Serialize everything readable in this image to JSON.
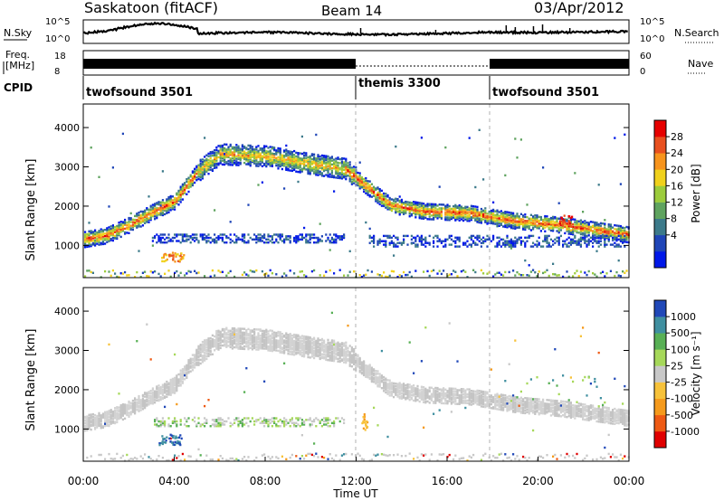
{
  "header": {
    "title": "Saskatoon (fitACF)",
    "beam": "Beam 14",
    "date": "03/Apr/2012"
  },
  "strips": {
    "sky_label": "N.Sky",
    "noise_left_ticks": [
      "10^5",
      "10^0"
    ],
    "noise_right_ticks": [
      "10^5",
      "10^0"
    ],
    "search_label": "N.Search",
    "freq_label_1": "Freq.",
    "freq_label_2": "[MHz]",
    "freq_ticks": [
      "18",
      "8"
    ],
    "nave_ticks": [
      "60",
      "0"
    ],
    "nave_label": "Nave",
    "cpid_label": "CPID",
    "cpid_segments": [
      {
        "name": "twofsound 3501",
        "start_h": 0,
        "end_h": 12
      },
      {
        "name": "themis 3300",
        "start_h": 12,
        "end_h": 18
      },
      {
        "name": "twofsound 3501",
        "start_h": 18,
        "end_h": 24
      }
    ]
  },
  "power_scale": {
    "label": "Power [dB]",
    "ticks": [
      "28",
      "24",
      "20",
      "16",
      "12",
      "8",
      "4"
    ],
    "colors": [
      "#0018e8",
      "#1f45b7",
      "#3c7a8a",
      "#5fa35f",
      "#9ccc3c",
      "#f0d11c",
      "#f7941d",
      "#e8501f",
      "#e60000"
    ]
  },
  "velocity_scale": {
    "label": "Velocity [m s⁻¹]",
    "ticks": [
      "1000",
      "500",
      "100",
      "25",
      "-25",
      "-100",
      "-500",
      "-1000"
    ],
    "colors": [
      "#2048b8",
      "#3f8fa0",
      "#58b055",
      "#a6d85a",
      "#c8c8c8",
      "#f7c23a",
      "#f59a1c",
      "#ee5a14",
      "#e00000"
    ]
  },
  "axes": {
    "ylabel": "Slant Range [km]",
    "yticks": [
      "1000",
      "2000",
      "3000",
      "4000"
    ],
    "xticks": [
      "00:00",
      "04:00",
      "08:00",
      "12:00",
      "16:00",
      "20:00",
      "00:00"
    ],
    "xlabel": "Time UT"
  },
  "chart_data": [
    {
      "type": "heatmap",
      "name": "Power",
      "xlabel": "Time UT",
      "ylabel": "Slant Range [km]",
      "xlim": [
        0,
        24
      ],
      "ylim": [
        180,
        4600
      ],
      "zlabel": "Power [dB]",
      "zticks": [
        4,
        8,
        12,
        16,
        20,
        24,
        28
      ],
      "ionospheric_band_range_km": [
        [
          0,
          1180
        ],
        [
          1,
          1280
        ],
        [
          2,
          1550
        ],
        [
          3,
          1870
        ],
        [
          4,
          2150
        ],
        [
          5,
          2900
        ],
        [
          6,
          3350
        ],
        [
          8,
          3300
        ],
        [
          10,
          3100
        ],
        [
          11.5,
          2980
        ],
        [
          12.5,
          2500
        ],
        [
          13.5,
          2050
        ],
        [
          15,
          1900
        ],
        [
          17,
          1850
        ],
        [
          19,
          1650
        ],
        [
          21,
          1550
        ],
        [
          24,
          1300
        ]
      ],
      "lower_echo_band": {
        "time_h": [
          3,
          11.5
        ],
        "range_km": [
          1100,
          1300
        ]
      },
      "cpid_boundaries_h": [
        12,
        18
      ]
    },
    {
      "type": "heatmap",
      "name": "Velocity",
      "xlabel": "Time UT",
      "ylabel": "Slant Range [km]",
      "xlim": [
        0,
        24
      ],
      "ylim": [
        180,
        4600
      ],
      "zlabel": "Velocity [m s⁻¹]",
      "zticks": [
        -1000,
        -500,
        -100,
        -25,
        25,
        100,
        500,
        1000
      ],
      "ground_scatter_band_range_km": [
        [
          0,
          1180
        ],
        [
          1,
          1280
        ],
        [
          2,
          1550
        ],
        [
          3,
          1870
        ],
        [
          4,
          2150
        ],
        [
          5,
          2900
        ],
        [
          6,
          3350
        ],
        [
          8,
          3300
        ],
        [
          10,
          3100
        ],
        [
          11.5,
          2980
        ],
        [
          12.5,
          2500
        ],
        [
          13.5,
          2050
        ],
        [
          15,
          1900
        ],
        [
          17,
          1850
        ],
        [
          19,
          1650
        ],
        [
          21,
          1550
        ],
        [
          24,
          1300
        ]
      ],
      "cpid_boundaries_h": [
        12,
        18
      ]
    }
  ]
}
